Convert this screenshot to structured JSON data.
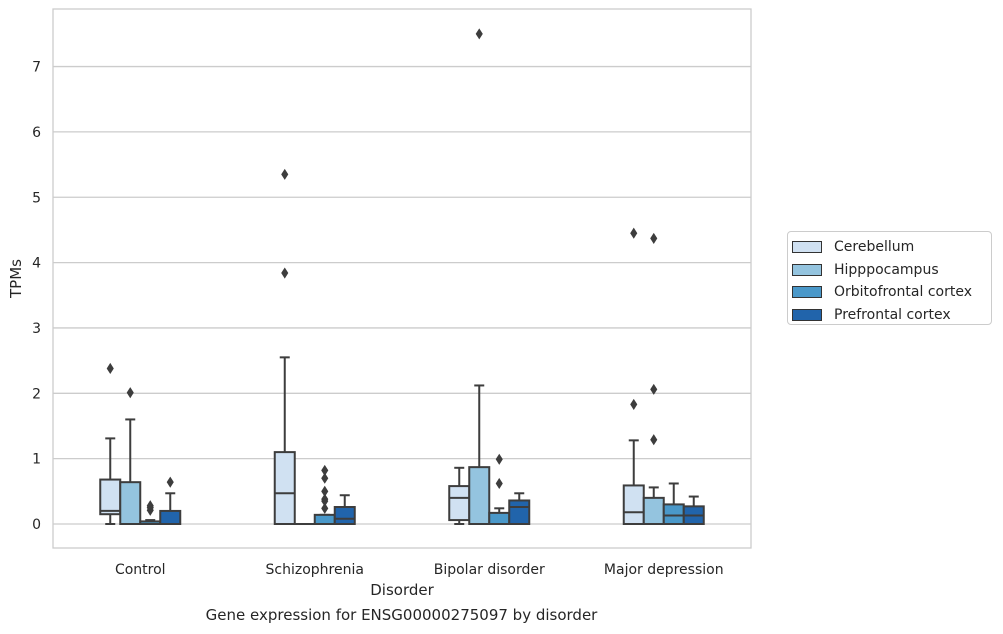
{
  "chart_data": {
    "type": "boxplot",
    "xlabel": "Disorder",
    "ylabel": "TPMs",
    "ylim": [
      -0.35,
      7.9
    ],
    "yticks": [
      0,
      1,
      2,
      3,
      4,
      5,
      6,
      7
    ],
    "grid": "horizontal",
    "legend_placement": "right",
    "caption": "Gene expression for ENSG00000275097 by disorder",
    "categories": [
      "Control",
      "Schizophrenia",
      "Bipolar disorder",
      "Major depression"
    ],
    "series": [
      {
        "name": "Cerebellum",
        "color": "#d0e1f2",
        "boxes": [
          {
            "whislo": 0.0,
            "q1": 0.15,
            "med": 0.2,
            "q3": 0.68,
            "whishi": 1.31,
            "fliers": [
              2.38
            ]
          },
          {
            "whislo": 0.0,
            "q1": 0.0,
            "med": 0.47,
            "q3": 1.1,
            "whishi": 2.55,
            "fliers": [
              3.84,
              5.35
            ]
          },
          {
            "whislo": 0.0,
            "q1": 0.06,
            "med": 0.4,
            "q3": 0.58,
            "whishi": 0.86,
            "fliers": []
          },
          {
            "whislo": 0.0,
            "q1": 0.0,
            "med": 0.18,
            "q3": 0.59,
            "whishi": 1.28,
            "fliers": [
              1.83,
              4.45
            ]
          }
        ]
      },
      {
        "name": "Hipppocampus",
        "color": "#94c4df",
        "boxes": [
          {
            "whislo": 0.0,
            "q1": 0.0,
            "med": 0.0,
            "q3": 0.64,
            "whishi": 1.6,
            "fliers": [
              2.01
            ]
          },
          {
            "whislo": 0.0,
            "q1": 0.0,
            "med": 0.0,
            "q3": 0.0,
            "whishi": 0.0,
            "fliers": []
          },
          {
            "whislo": 0.0,
            "q1": 0.0,
            "med": 0.0,
            "q3": 0.87,
            "whishi": 2.12,
            "fliers": [
              7.5
            ]
          },
          {
            "whislo": 0.0,
            "q1": 0.0,
            "med": 0.0,
            "q3": 0.4,
            "whishi": 0.56,
            "fliers": [
              1.29,
              2.06,
              4.37
            ]
          }
        ]
      },
      {
        "name": "Orbitofrontal cortex",
        "color": "#4a98c9",
        "boxes": [
          {
            "whislo": 0.0,
            "q1": 0.0,
            "med": 0.0,
            "q3": 0.04,
            "whishi": 0.06,
            "fliers": [
              0.21,
              0.25,
              0.28
            ]
          },
          {
            "whislo": 0.0,
            "q1": 0.0,
            "med": 0.0,
            "q3": 0.14,
            "whishi": 0.14,
            "fliers": [
              0.24,
              0.35,
              0.38,
              0.5,
              0.7,
              0.82
            ]
          },
          {
            "whislo": 0.0,
            "q1": 0.0,
            "med": 0.0,
            "q3": 0.17,
            "whishi": 0.24,
            "fliers": [
              0.62,
              0.99
            ]
          },
          {
            "whislo": 0.0,
            "q1": 0.0,
            "med": 0.13,
            "q3": 0.3,
            "whishi": 0.62,
            "fliers": []
          }
        ]
      },
      {
        "name": "Prefrontal cortex",
        "color": "#2164ab",
        "boxes": [
          {
            "whislo": 0.0,
            "q1": 0.0,
            "med": 0.0,
            "q3": 0.2,
            "whishi": 0.47,
            "fliers": [
              0.64
            ]
          },
          {
            "whislo": 0.0,
            "q1": 0.0,
            "med": 0.08,
            "q3": 0.26,
            "whishi": 0.44,
            "fliers": []
          },
          {
            "whislo": 0.0,
            "q1": 0.0,
            "med": 0.26,
            "q3": 0.36,
            "whishi": 0.47,
            "fliers": []
          },
          {
            "whislo": 0.0,
            "q1": 0.0,
            "med": 0.13,
            "q3": 0.27,
            "whishi": 0.42,
            "fliers": []
          }
        ]
      }
    ]
  }
}
